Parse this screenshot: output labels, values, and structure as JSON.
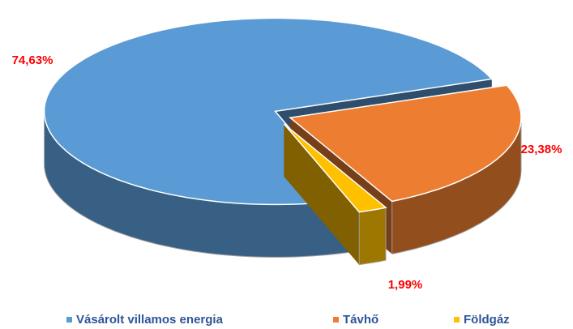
{
  "chart_data": {
    "type": "pie",
    "three_d": true,
    "categories": [
      "Vásárolt villamos energia",
      "Távhő",
      "Földgáz"
    ],
    "values": [
      74.63,
      23.38,
      1.99
    ],
    "value_labels": [
      "74,63%",
      "23,38%",
      "1,99%"
    ],
    "colors": [
      "#5b9bd5",
      "#ed7d31",
      "#ffc000"
    ],
    "legend": "bottom"
  }
}
